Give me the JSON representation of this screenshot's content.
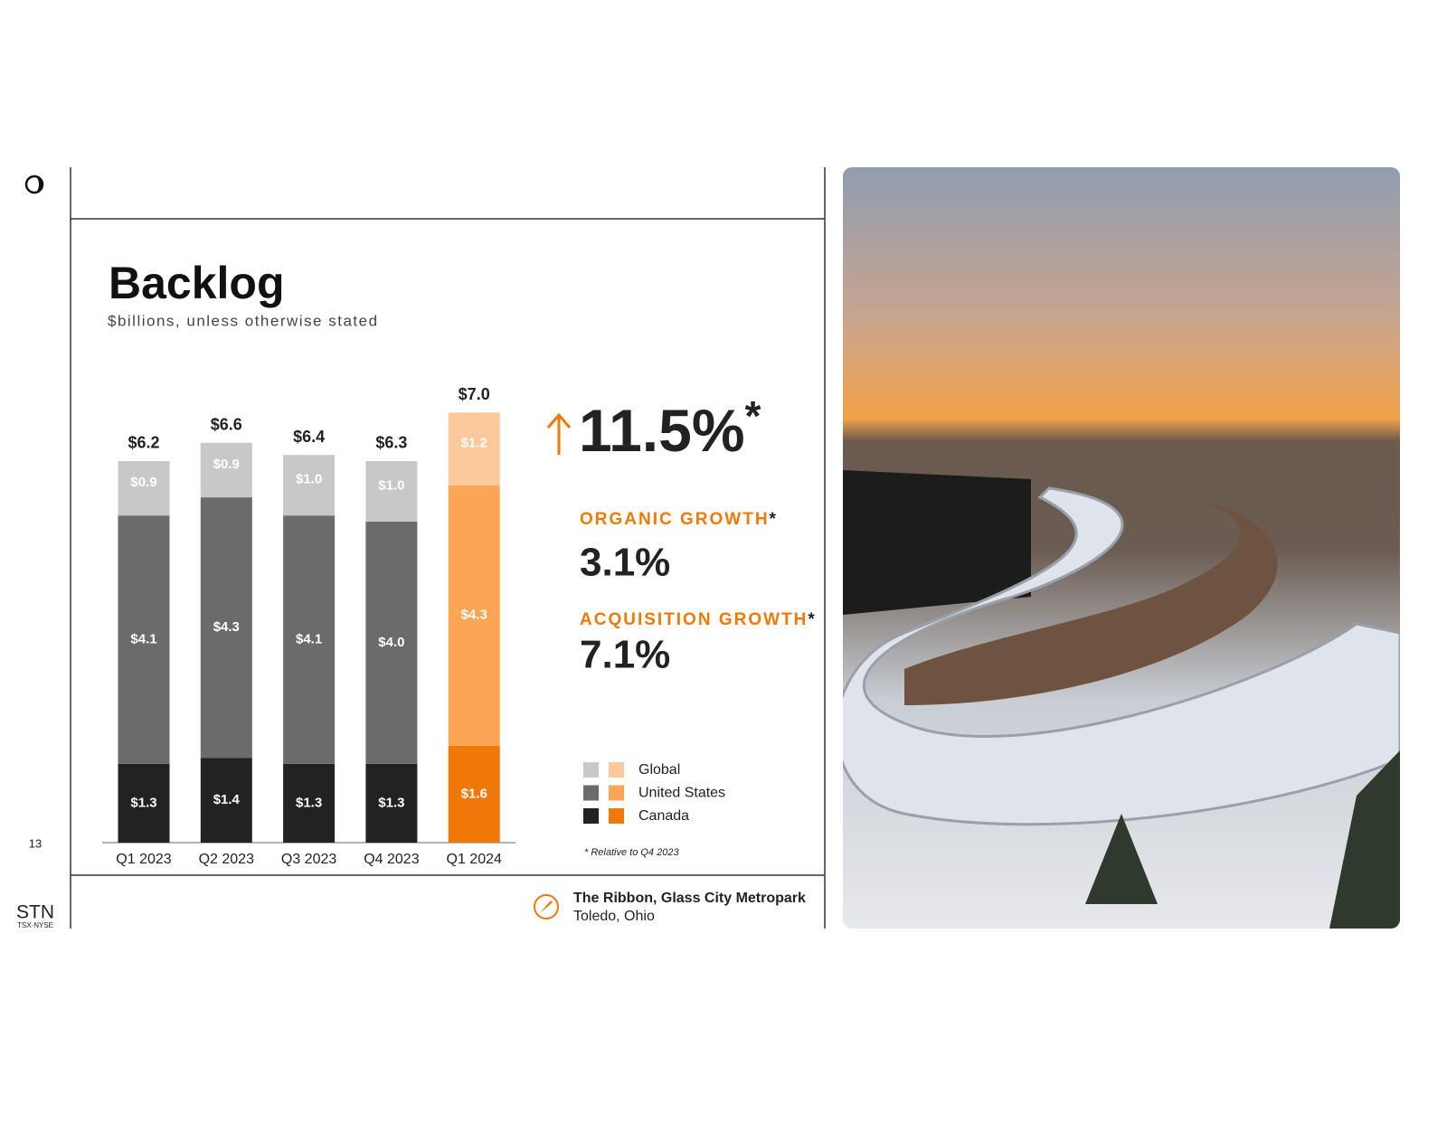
{
  "chart_data": {
    "type": "stacked-bar",
    "title": "Backlog",
    "subtitle": "$billions, unless otherwise stated",
    "categories": [
      "Q1 2023",
      "Q2 2023",
      "Q3 2023",
      "Q4 2023",
      "Q1 2024"
    ],
    "highlight_category": "Q1 2024",
    "series": [
      {
        "name": "Global",
        "color": "#c8c8c8",
        "highlight_color": "#fdc89a",
        "values": [
          0.9,
          0.9,
          1.0,
          1.0,
          1.2
        ],
        "value_labels": [
          "$0.9",
          "$0.9",
          "$1.0",
          "$1.0",
          "$1.2"
        ]
      },
      {
        "name": "United States",
        "color": "#6b6b6b",
        "highlight_color": "#fba654",
        "values": [
          4.1,
          4.3,
          4.1,
          4.0,
          4.3
        ],
        "value_labels": [
          "$4.1",
          "$4.3",
          "$4.1",
          "$4.0",
          "$4.3"
        ]
      },
      {
        "name": "Canada",
        "color": "#222222",
        "highlight_color": "#f07806",
        "values": [
          1.3,
          1.4,
          1.3,
          1.3,
          1.6
        ],
        "value_labels": [
          "$1.3",
          "$1.4",
          "$1.3",
          "$1.3",
          "$1.6"
        ]
      }
    ],
    "totals": [
      6.2,
      6.6,
      6.4,
      6.3,
      7.0
    ],
    "total_labels": [
      "$6.2",
      "$6.6",
      "$6.4",
      "$6.3",
      "$7.0"
    ]
  },
  "stats": {
    "headline": "11.5%",
    "headline_mark": "*",
    "items": [
      {
        "label": "ORGANIC GROWTH",
        "mark": "*",
        "value": "3.1%"
      },
      {
        "label": "ACQUISITION GROWTH",
        "mark": "*",
        "value": "7.1%"
      }
    ],
    "footnote": "* Relative to Q4 2023"
  },
  "caption": {
    "title": "The Ribbon, Glass City Metropark",
    "place": "Toledo, Ohio"
  },
  "page": {
    "number": "13",
    "brand": "STN",
    "exchange": "TSX·NYSE"
  }
}
